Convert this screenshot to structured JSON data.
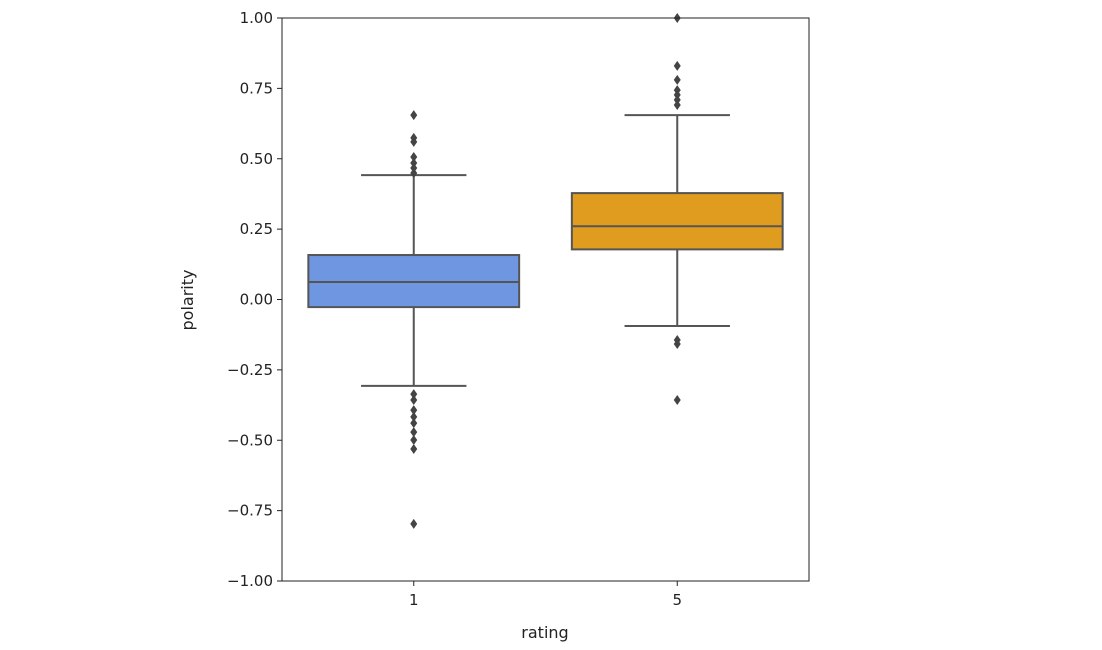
{
  "chart_data": {
    "type": "box",
    "title": "",
    "xlabel": "rating",
    "ylabel": "polarity",
    "ylim": [
      -1.0,
      1.0
    ],
    "yticks": [
      "−1.00",
      "−0.75",
      "−0.50",
      "−0.25",
      "0.00",
      "0.25",
      "0.50",
      "0.75",
      "1.00"
    ],
    "ytick_values": [
      -1.0,
      -0.75,
      -0.5,
      -0.25,
      0,
      0.25,
      0.5,
      0.75,
      1.0
    ],
    "categories": [
      "1",
      "5"
    ],
    "series": [
      {
        "name": "1",
        "color": "#6f96e0",
        "q1": -0.027,
        "median": 0.062,
        "q3": 0.158,
        "whisker_low": -0.307,
        "whisker_high": 0.442,
        "outliers": [
          0.655,
          0.574,
          0.56,
          0.506,
          0.485,
          0.467,
          0.449,
          -0.336,
          -0.357,
          -0.393,
          -0.417,
          -0.439,
          -0.471,
          -0.499,
          -0.531,
          -0.797
        ]
      },
      {
        "name": "5",
        "color": "#e09c1f",
        "q1": 0.178,
        "median": 0.26,
        "q3": 0.378,
        "whisker_low": -0.094,
        "whisker_high": 0.655,
        "outliers": [
          1.0,
          0.83,
          0.78,
          0.744,
          0.727,
          0.709,
          0.691,
          -0.144,
          -0.158,
          -0.357
        ]
      }
    ],
    "grid": false,
    "legend": "none"
  }
}
